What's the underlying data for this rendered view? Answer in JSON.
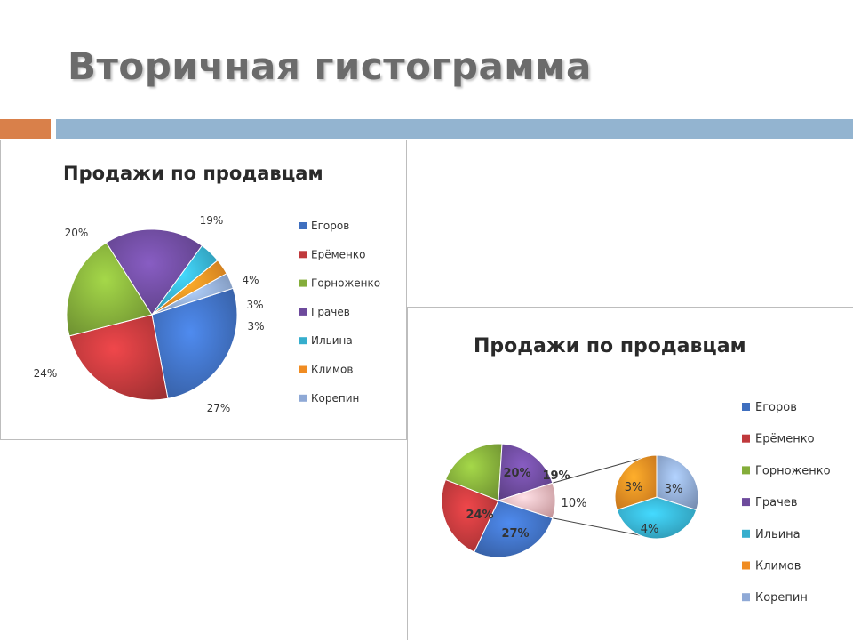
{
  "slide": {
    "title": "Вторичная гистограмма",
    "accent_colors": {
      "orange": "#d9804a",
      "blue": "#93b4d0"
    }
  },
  "chart_data": [
    {
      "type": "pie",
      "title": "Продажи по продавцам",
      "legend_position": "right",
      "slices": [
        {
          "name": "Егоров",
          "value": 27,
          "label": "27%",
          "color": "#3f6fbf"
        },
        {
          "name": "Ерёменко",
          "value": 24,
          "label": "24%",
          "color": "#c0393c"
        },
        {
          "name": "Горноженко",
          "value": 20,
          "label": "20%",
          "color": "#84ad3a"
        },
        {
          "name": "Грачев",
          "value": 19,
          "label": "19%",
          "color": "#6d4a9c"
        },
        {
          "name": "Ильина",
          "value": 4,
          "label": "4%",
          "color": "#36aecd"
        },
        {
          "name": "Климов",
          "value": 3,
          "label": "3%",
          "color": "#f08c22"
        },
        {
          "name": "Корепин",
          "value": 3,
          "label": "3%",
          "color": "#8fa9d6"
        }
      ]
    },
    {
      "type": "pie",
      "subtype": "bar-of-pie",
      "title": "Продажи по продавцам",
      "legend_position": "right",
      "main_slices": [
        {
          "name": "Егоров",
          "value": 27,
          "label": "27%",
          "color": "#3f6fbf"
        },
        {
          "name": "Ерёменко",
          "value": 24,
          "label": "24%",
          "color": "#c0393c"
        },
        {
          "name": "Горноженко",
          "value": 20,
          "label": "20%",
          "color": "#84ad3a"
        },
        {
          "name": "Грачев",
          "value": 19,
          "label": "19%",
          "color": "#6d4a9c"
        },
        {
          "name": "other",
          "value": 10,
          "label": "10%",
          "color": "#eeb3b8"
        }
      ],
      "secondary_slices": [
        {
          "name": "Ильина",
          "value": 4,
          "label": "4%",
          "color": "#36aecd"
        },
        {
          "name": "Климов",
          "value": 3,
          "label": "3%",
          "color": "#f08c22"
        },
        {
          "name": "Корепин",
          "value": 3,
          "label": "3%",
          "color": "#8fa9d6"
        }
      ],
      "legend": [
        {
          "name": "Егоров",
          "color": "#3f6fbf"
        },
        {
          "name": "Ерёменко",
          "color": "#c0393c"
        },
        {
          "name": "Горноженко",
          "color": "#84ad3a"
        },
        {
          "name": "Грачев",
          "color": "#6d4a9c"
        },
        {
          "name": "Ильина",
          "color": "#36aecd"
        },
        {
          "name": "Климов",
          "color": "#f08c22"
        },
        {
          "name": "Корепин",
          "color": "#8fa9d6"
        }
      ]
    }
  ]
}
